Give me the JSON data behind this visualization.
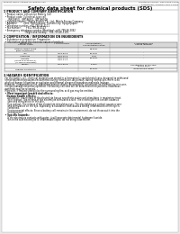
{
  "bg_color": "#e8e8e8",
  "page_bg": "#ffffff",
  "title": "Safety data sheet for chemical products (SDS)",
  "header_left": "Product Name: Lithium Ion Battery Cell",
  "header_right_line1": "Substance number: KBPC2508-00018",
  "header_right_line2": "Established / Revision: Dec.7.2018",
  "section1_title": "1 PRODUCT AND COMPANY IDENTIFICATION",
  "s1_lines": [
    "  • Product name: Lithium Ion Battery Cell",
    "  • Product code: Cylindrical-type cell",
    "       INR18650J, INR18650L, INR18650A",
    "  • Company name:    Sanyo Electric Co., Ltd., Mobile Energy Company",
    "  • Address:          2001, Kamitobusan, Sumoto-City, Hyogo, Japan",
    "  • Telephone number: +81-799-26-4111",
    "  • Fax number:       +81-799-26-4123",
    "  • Emergency telephone number (Weekday): +81-799-26-3062",
    "                                (Night and holiday): +81-799-26-3101"
  ],
  "section2_title": "2 COMPOSITION / INFORMATION ON INGREDIENTS",
  "s2_intro": "  • Substance or preparation: Preparation",
  "s2_sub": "  • Information about the chemical nature of product:",
  "table_col_headers": [
    "Component\nSeveral name",
    "CAS number",
    "Concentration /\nConcentration range",
    "Classification and\nhazard labeling"
  ],
  "table_rows": [
    [
      "Lithium cobalt oxide",
      "-",
      "30-60%",
      "-"
    ],
    [
      "(LiMn₂O₂/NiCoO₂)",
      "",
      "",
      ""
    ],
    [
      "Iron",
      "7439-89-6",
      "10-20%",
      "-"
    ],
    [
      "Aluminum",
      "7429-90-5",
      "2-5%",
      "-"
    ],
    [
      "Graphite",
      "7782-42-5",
      "10-30%",
      "-"
    ],
    [
      "(listed in graphite-1)",
      "7782-44-2",
      "",
      ""
    ],
    [
      "(Al-film-in graphite)",
      "",
      "",
      ""
    ],
    [
      "Copper",
      "7440-50-8",
      "5-15%",
      "Sensitization of the skin"
    ],
    [
      "",
      "",
      "",
      "group No.2"
    ],
    [
      "Organic electrolyte",
      "-",
      "10-20%",
      "Inflammable liquid"
    ]
  ],
  "section3_title": "3 HAZARDS IDENTIFICATION",
  "s3_lines": [
    "  For the battery cell, chemical materials are stored in a hermetically sealed metal case, designed to withstand",
    "  temperatures or pressures encountered during normal use. As a result, during normal use, there is no",
    "  physical danger of ignition or explosion and thermal danger of hazardous materials leakage.",
    "  However, if exposed to a fire, added mechanical shocks, decomposed, vented electro-chemical by miss-use,",
    "  the gas leakage cannot be operated. The battery cell case will be breached or fire-patterns, hazardous",
    "  materials may be released.",
    "  Moreover, if heated strongly by the surrounding fire, acid gas may be emitted.",
    "",
    "  • Most important hazard and effects:",
    "    Human health effects:",
    "      Inhalation: The release of the electrolyte has an anesthetic action and stimulates in respiratory tract.",
    "      Skin contact: The release of the electrolyte stimulates a skin. The electrolyte skin contact causes a",
    "      sore and stimulation on the skin.",
    "      Eye contact: The release of the electrolyte stimulates eyes. The electrolyte eye contact causes a sore",
    "      and stimulation on the eye. Especially, a substance that causes a strong inflammation of the eye is",
    "      contained.",
    "      Environmental effects: Since a battery cell remains in the environment, do not throw out it into the",
    "      environment.",
    "",
    "  • Specific hazards:",
    "      If the electrolyte contacts with water, it will generate detrimental hydrogen fluoride.",
    "      Since the said electrolyte is inflammable liquid, do not bring close to fire."
  ]
}
